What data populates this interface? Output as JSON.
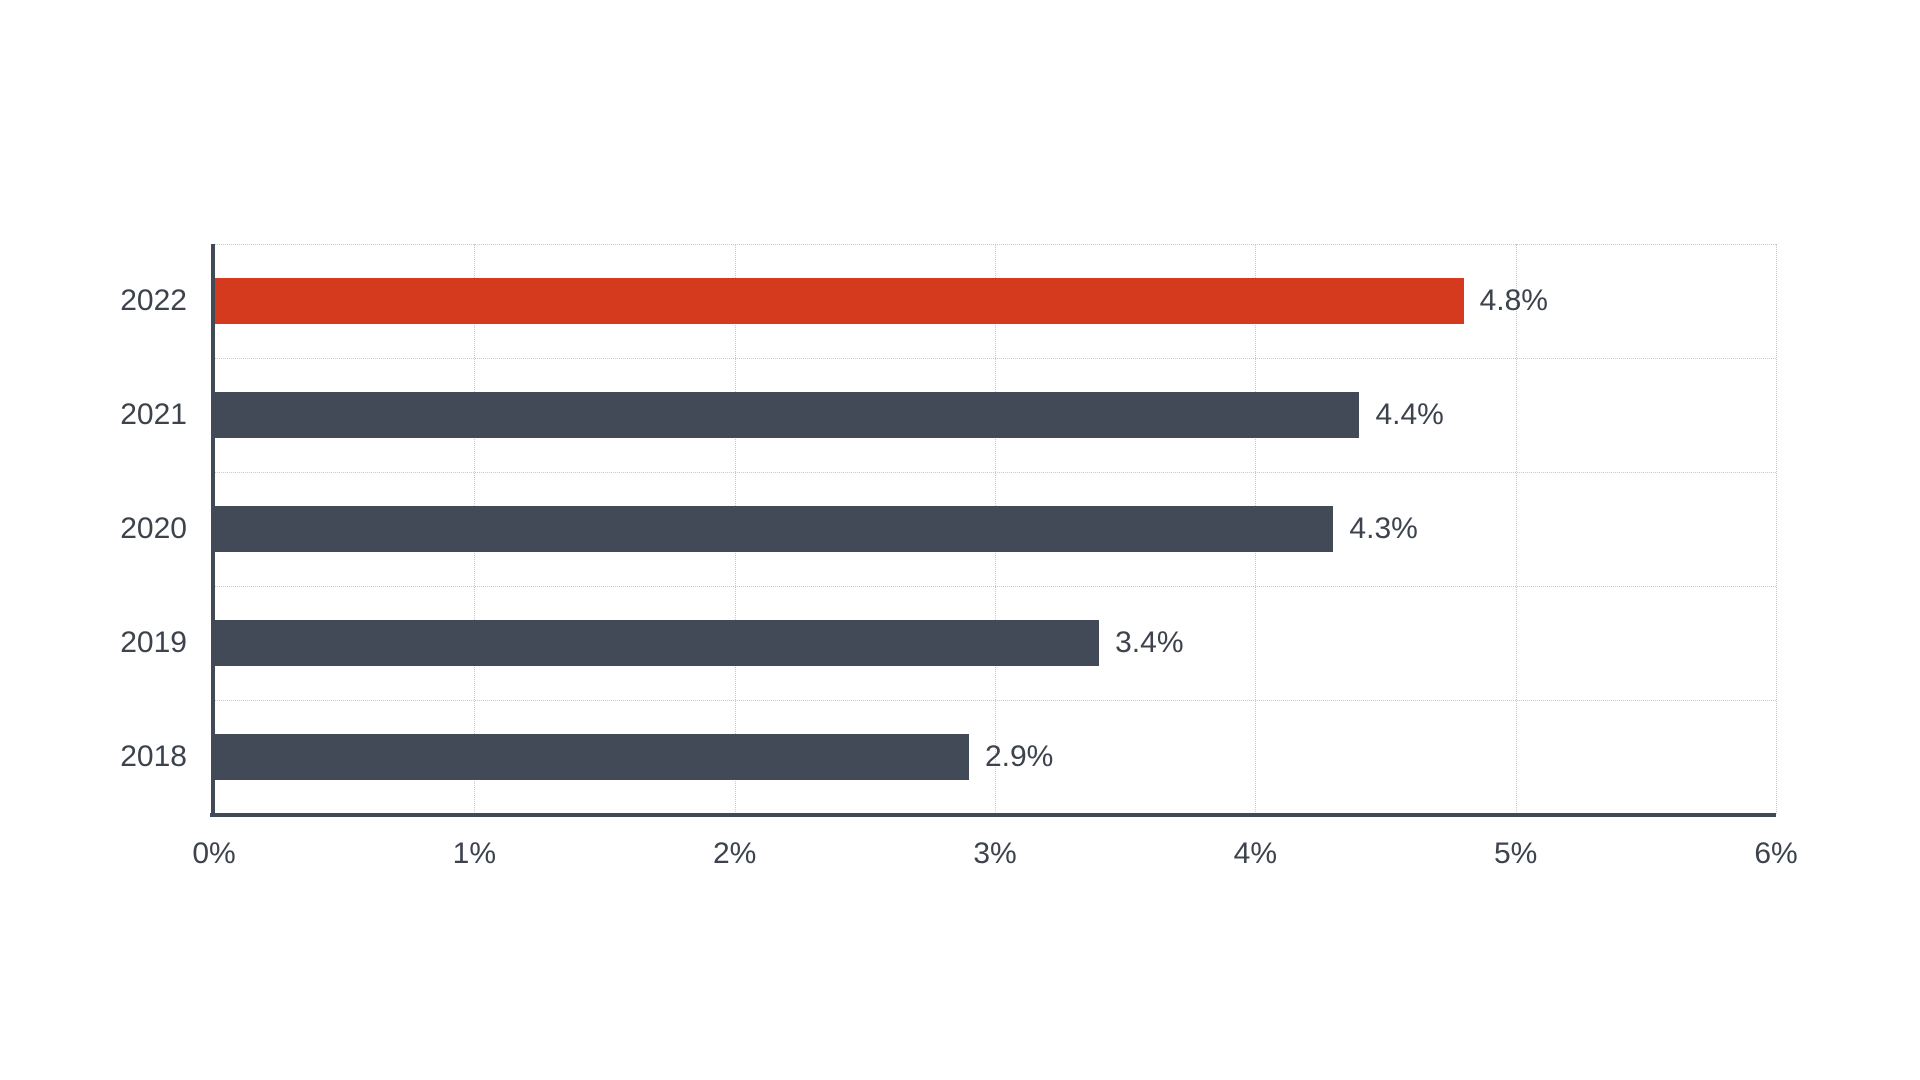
{
  "chart_data": {
    "type": "bar",
    "orientation": "horizontal",
    "title": "",
    "xlabel": "",
    "ylabel": "",
    "categories": [
      "2022",
      "2021",
      "2020",
      "2019",
      "2018"
    ],
    "values": [
      4.8,
      4.4,
      4.3,
      3.4,
      2.9
    ],
    "value_labels": [
      "4.8%",
      "4.4%",
      "4.3%",
      "3.4%",
      "2.9%"
    ],
    "bar_colors": [
      "#d53a1e",
      "#424a57",
      "#424a57",
      "#424a57",
      "#424a57"
    ],
    "highlight_category": "2022",
    "highlight_color": "#d53a1e",
    "default_bar_color": "#424a57",
    "xlim": [
      0,
      6
    ],
    "x_tick_labels": [
      "0%",
      "1%",
      "2%",
      "3%",
      "4%",
      "5%",
      "6%"
    ],
    "x_tick_values": [
      0,
      1,
      2,
      3,
      4,
      5,
      6
    ],
    "grid": "dotted",
    "gridline_color": "#c9c9c9",
    "axis_color": "#424a57",
    "text_color": "#3d434d",
    "background_color": "#ffffff",
    "legend": "none"
  }
}
